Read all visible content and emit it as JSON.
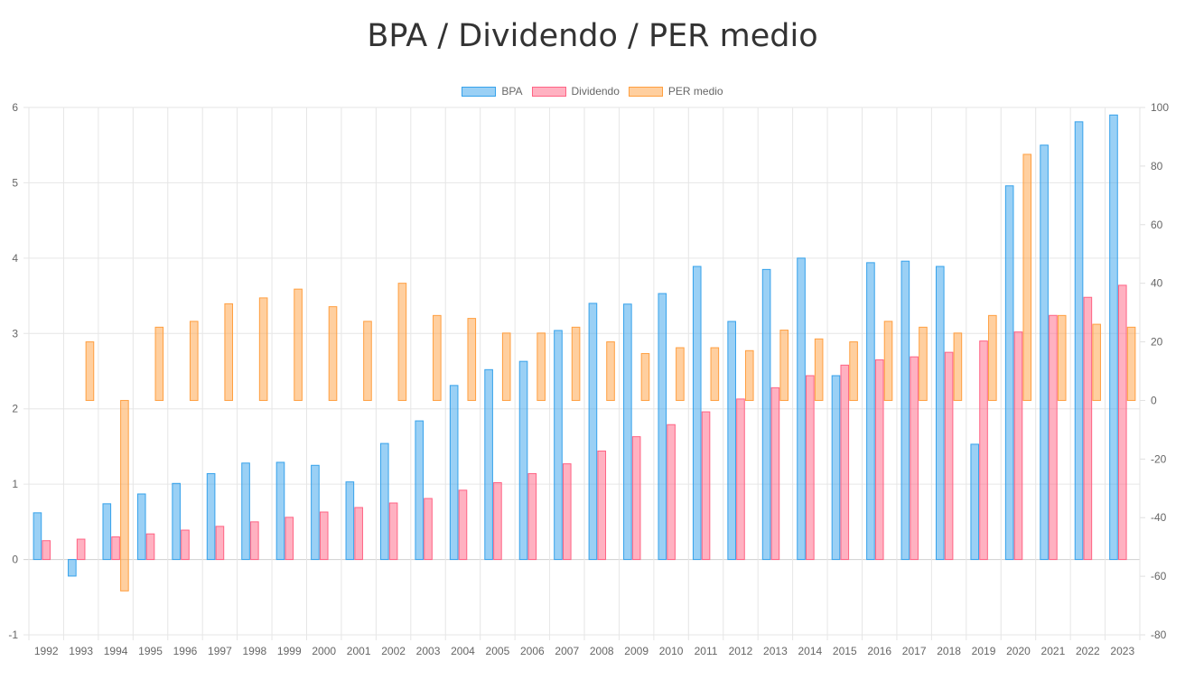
{
  "chart_data": {
    "type": "bar",
    "title": "BPA / Dividendo / PER medio",
    "categories": [
      "1992",
      "1993",
      "1994",
      "1995",
      "1996",
      "1997",
      "1998",
      "1999",
      "2000",
      "2001",
      "2002",
      "2003",
      "2004",
      "2005",
      "2006",
      "2007",
      "2008",
      "2009",
      "2010",
      "2011",
      "2012",
      "2013",
      "2014",
      "2015",
      "2016",
      "2017",
      "2018",
      "2019",
      "2020",
      "2021",
      "2022",
      "2023"
    ],
    "series": [
      {
        "name": "BPA",
        "axis": "left",
        "color": "#36a2eb",
        "fill": "rgba(54,162,235,0.5)",
        "values": [
          0.62,
          -0.22,
          0.74,
          0.87,
          1.01,
          1.14,
          1.28,
          1.29,
          1.25,
          1.03,
          1.54,
          1.84,
          2.31,
          2.52,
          2.63,
          3.04,
          3.4,
          3.39,
          3.53,
          3.89,
          3.16,
          3.85,
          4.0,
          2.44,
          3.94,
          3.96,
          3.89,
          1.53,
          4.96,
          5.5,
          5.81,
          5.9
        ]
      },
      {
        "name": "Dividendo",
        "axis": "left",
        "color": "#ff6384",
        "fill": "rgba(255,99,132,0.5)",
        "values": [
          0.25,
          0.27,
          0.3,
          0.34,
          0.39,
          0.44,
          0.5,
          0.56,
          0.63,
          0.69,
          0.75,
          0.81,
          0.92,
          1.02,
          1.14,
          1.27,
          1.44,
          1.63,
          1.79,
          1.96,
          2.13,
          2.28,
          2.44,
          2.58,
          2.65,
          2.69,
          2.75,
          2.9,
          3.02,
          3.24,
          3.48,
          3.64
        ]
      },
      {
        "name": "PER medio",
        "axis": "right",
        "color": "#ff9f40",
        "fill": "rgba(255,159,64,0.5)",
        "values": [
          null,
          20,
          -65,
          25,
          27,
          33,
          35,
          38,
          32,
          27,
          40,
          29,
          28,
          23,
          23,
          25,
          20,
          16,
          18,
          18,
          17,
          24,
          21,
          20,
          27,
          25,
          23,
          29,
          84,
          29,
          26,
          25
        ]
      }
    ],
    "y_left": {
      "min": -1,
      "max": 6,
      "ticks": [
        -1,
        0,
        1,
        2,
        3,
        4,
        5,
        6
      ]
    },
    "y_right": {
      "min": -80,
      "max": 100,
      "ticks": [
        -80,
        -60,
        -40,
        -20,
        0,
        20,
        40,
        60,
        80,
        100
      ]
    },
    "grid": true,
    "legend_position": "top"
  }
}
